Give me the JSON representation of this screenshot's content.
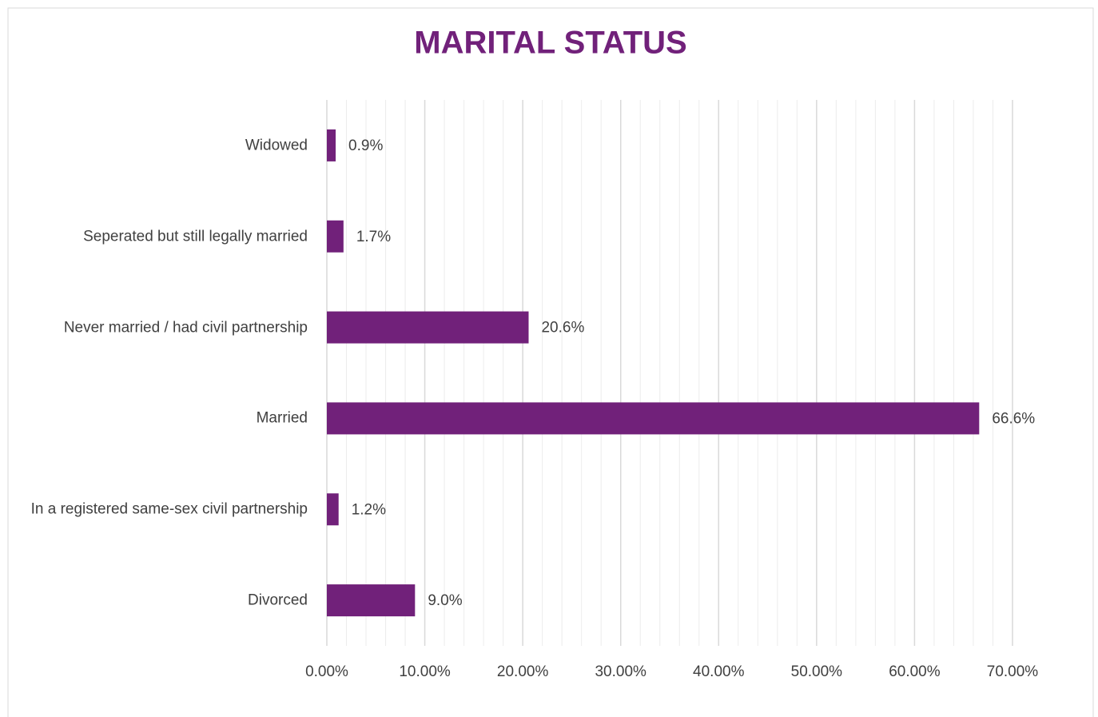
{
  "chart_data": {
    "type": "barh",
    "title": "MARITAL STATUS",
    "categories": [
      "Widowed",
      "Seperated but still legally married",
      "Never married / had civil partnership",
      "Married",
      "In a registered same-sex civil partnership",
      "Divorced"
    ],
    "values": [
      0.9,
      1.7,
      20.6,
      66.6,
      1.2,
      9.0
    ],
    "value_labels": [
      "0.9%",
      "1.7%",
      "20.6%",
      "66.6%",
      "1.2%",
      "9.0%"
    ],
    "color": "#71217a",
    "xlim": [
      0,
      70
    ],
    "xticks": [
      {
        "value": 0,
        "label": "0.00%"
      },
      {
        "value": 10,
        "label": "10.00%"
      },
      {
        "value": 20,
        "label": "20.00%"
      },
      {
        "value": 30,
        "label": "30.00%"
      },
      {
        "value": 40,
        "label": "40.00%"
      },
      {
        "value": 50,
        "label": "50.00%"
      },
      {
        "value": 60,
        "label": "60.00%"
      },
      {
        "value": 70,
        "label": "70.00%"
      }
    ],
    "grid": true,
    "minor_grid": true
  }
}
